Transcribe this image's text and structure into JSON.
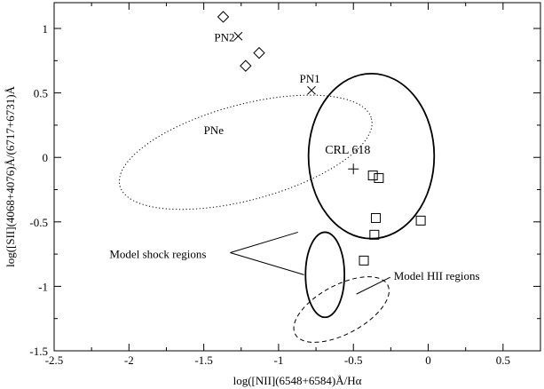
{
  "chart_data": {
    "type": "scatter",
    "title": "",
    "xlabel": "log([NII](6548+6584)Å/Hα",
    "ylabel": "log([SII](4068+4076)Å/(6717+6731)Å",
    "xlim": [
      -2.5,
      0.75
    ],
    "ylim": [
      -1.5,
      1.2
    ],
    "xticks": [
      -2.5,
      -2,
      -1.5,
      -1,
      -0.5,
      0,
      0.5
    ],
    "xtick_labels": [
      "-2.5",
      "-2",
      "-1.5",
      "-1",
      "-0.5",
      "0",
      "0.5"
    ],
    "yticks": [
      -1.5,
      -1,
      -0.5,
      0,
      0.5,
      1
    ],
    "ytick_labels": [
      "-1.5",
      "-1",
      "-0.5",
      "0",
      "0.5",
      "1"
    ],
    "grid": false,
    "series": [
      {
        "marker": "diamond",
        "points": [
          {
            "x": -1.37,
            "y": 1.09
          },
          {
            "x": -1.13,
            "y": 0.81
          },
          {
            "x": -1.22,
            "y": 0.71
          }
        ]
      },
      {
        "marker": "cross",
        "points": [
          {
            "x": -1.27,
            "y": 0.94
          },
          {
            "x": -0.78,
            "y": 0.52
          }
        ]
      },
      {
        "marker": "plus",
        "points": [
          {
            "x": -0.5,
            "y": -0.09
          }
        ]
      },
      {
        "marker": "square",
        "points": [
          {
            "x": -0.37,
            "y": -0.14
          },
          {
            "x": -0.33,
            "y": -0.16
          },
          {
            "x": -0.35,
            "y": -0.47
          },
          {
            "x": -0.05,
            "y": -0.49
          },
          {
            "x": -0.36,
            "y": -0.6
          },
          {
            "x": -0.43,
            "y": -0.8
          }
        ]
      }
    ],
    "regions": [
      {
        "label": "PNe",
        "style": "dotted",
        "cx": -1.22,
        "cy": 0.04,
        "rx": 0.87,
        "ry": 0.37,
        "angle": -15
      },
      {
        "label": "CRL 618 region",
        "style": "solid",
        "cx": -0.38,
        "cy": 0.01,
        "rx": 0.42,
        "ry": 0.64,
        "angle": 0
      },
      {
        "label": "Model shock regions",
        "style": "solid",
        "cx": -0.69,
        "cy": -0.91,
        "rx": 0.13,
        "ry": 0.33,
        "angle": 0
      },
      {
        "label": "Model HII regions",
        "style": "dashed",
        "cx": -0.58,
        "cy": -1.18,
        "rx": 0.35,
        "ry": 0.19,
        "angle": -28
      }
    ],
    "annotations": [
      {
        "text": "PN2",
        "x": -1.43,
        "y": 0.9
      },
      {
        "text": "PN1",
        "x": -0.86,
        "y": 0.58
      },
      {
        "text": "PNe",
        "x": -1.5,
        "y": 0.18
      },
      {
        "text": "CRL 618",
        "x": -0.69,
        "y": 0.03
      },
      {
        "text": "Model shock regions",
        "x": -2.13,
        "y": -0.78
      },
      {
        "text": "Model HII regions",
        "x": -0.23,
        "y": -0.95
      }
    ]
  }
}
